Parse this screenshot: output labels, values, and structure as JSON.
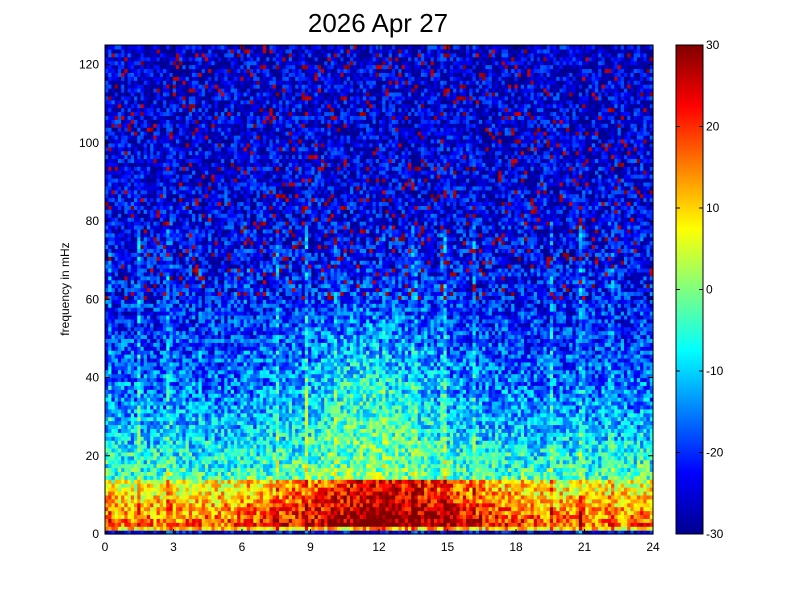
{
  "chart_data": {
    "type": "heatmap",
    "title": "2026 Apr 27",
    "xlabel": "",
    "ylabel": "frequency in mHz",
    "xlim": [
      0,
      24
    ],
    "ylim": [
      0,
      125
    ],
    "x_ticks": [
      0,
      3,
      6,
      9,
      12,
      15,
      18,
      21,
      24
    ],
    "y_ticks": [
      0,
      20,
      40,
      60,
      80,
      100,
      120
    ],
    "x_tick_labels": [
      "0",
      "3",
      "6",
      "9",
      "12",
      "15",
      "18",
      "21",
      "24"
    ],
    "y_tick_labels": [
      "0",
      "20",
      "40",
      "60",
      "80",
      "100",
      "120"
    ],
    "colorbar": {
      "range": [
        -30,
        30
      ],
      "ticks": [
        -30,
        -20,
        -10,
        0,
        10,
        20,
        30
      ],
      "tick_labels": [
        "-30",
        "-20",
        "-10",
        "0",
        "10",
        "20",
        "30"
      ],
      "colormap": "jet"
    },
    "colormap_stops": [
      "#00008f",
      "#0000ff",
      "#00ffff",
      "#ffff00",
      "#ff0000",
      "#800000"
    ],
    "grid": false,
    "regions": [
      {
        "description": "strong power band",
        "x_range": [
          8,
          18.5
        ],
        "y_range": [
          2,
          12
        ],
        "value": 25
      },
      {
        "description": "moderate power band",
        "x_range": [
          0,
          24
        ],
        "y_range": [
          2,
          15
        ],
        "value": 12
      },
      {
        "description": "elevated midday power",
        "x_range": [
          8.5,
          14
        ],
        "y_range": [
          20,
          55
        ],
        "value": 5
      },
      {
        "description": "background high frequencies",
        "x_range": [
          0,
          24
        ],
        "y_range": [
          70,
          125
        ],
        "value": -22
      },
      {
        "description": "low-power stripe near zero frequency",
        "x_range": [
          0,
          24
        ],
        "y_range": [
          0,
          1.5
        ],
        "value": -25
      }
    ]
  }
}
